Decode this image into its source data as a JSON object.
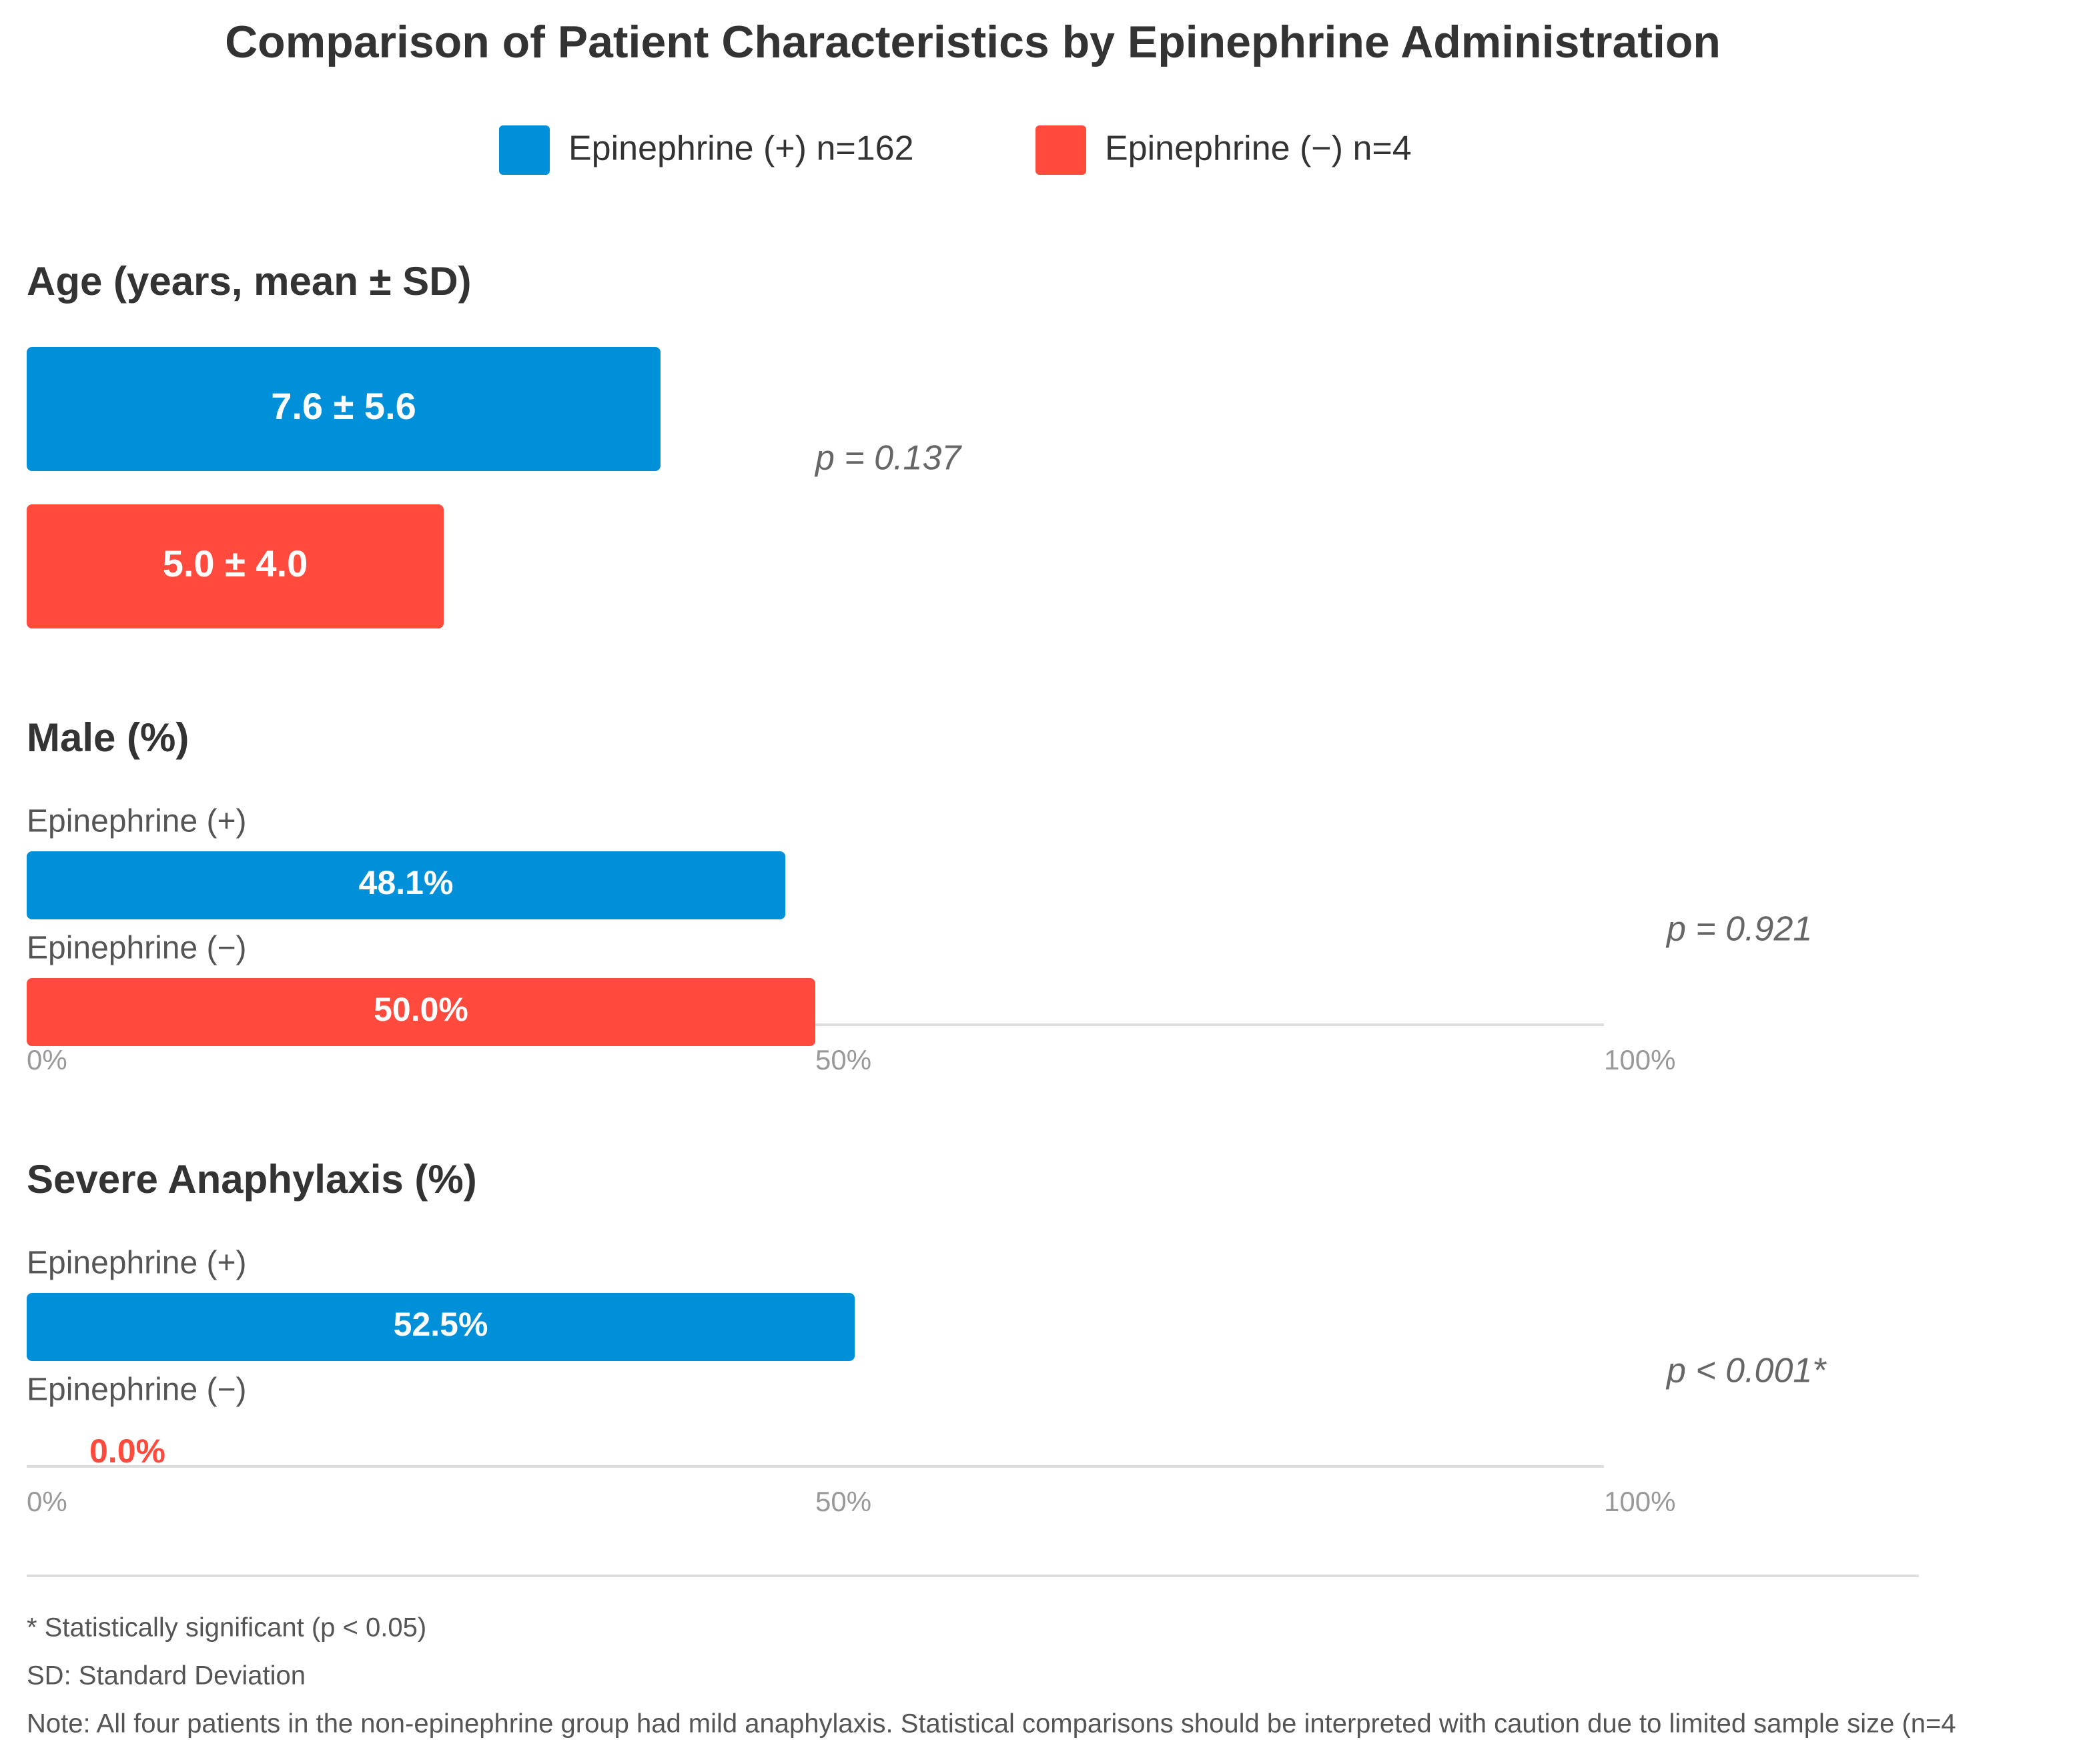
{
  "title": "Comparison of Patient Characteristics by Epinephrine Administration",
  "series": [
    {
      "name": "Epinephrine (+) n=162",
      "color": "#0090da"
    },
    {
      "name": "Epinephrine (−) n=4",
      "color": "#ff4a3d"
    }
  ],
  "chart_data": [
    {
      "type": "bar",
      "title": "Age (years, mean ± SD)",
      "values": [
        7.6,
        5.0
      ],
      "value_labels": [
        "7.6 ± 5.6",
        "5.0 ± 4.0"
      ],
      "annotation": "p = 0.137"
    },
    {
      "type": "bar",
      "title": "Male (%)",
      "categories": [
        "Epinephrine (+)",
        "Epinephrine (−)"
      ],
      "values": [
        48.1,
        50.0
      ],
      "value_labels": [
        "48.1%",
        "50.0%"
      ],
      "xlim": [
        0,
        100
      ],
      "xticks": [
        {
          "value": 0,
          "label": "0%"
        },
        {
          "value": 50,
          "label": "50%"
        },
        {
          "value": 100,
          "label": "100%"
        }
      ],
      "annotation": "p = 0.921"
    },
    {
      "type": "bar",
      "title": "Severe Anaphylaxis (%)",
      "categories": [
        "Epinephrine (+)",
        "Epinephrine (−)"
      ],
      "values": [
        52.5,
        0.0
      ],
      "value_labels": [
        "52.5%",
        "0.0%"
      ],
      "xlim": [
        0,
        100
      ],
      "xticks": [
        {
          "value": 0,
          "label": "0%"
        },
        {
          "value": 50,
          "label": "50%"
        },
        {
          "value": 100,
          "label": "100%"
        }
      ],
      "annotation": "p < 0.001*"
    }
  ],
  "notes": [
    "* Statistically significant (p < 0.05)",
    "SD: Standard Deviation",
    "Note: All four patients in the non-epinephrine group had mild anaphylaxis. Statistical comparisons should be interpreted with caution due to limited sample size (n=4"
  ]
}
